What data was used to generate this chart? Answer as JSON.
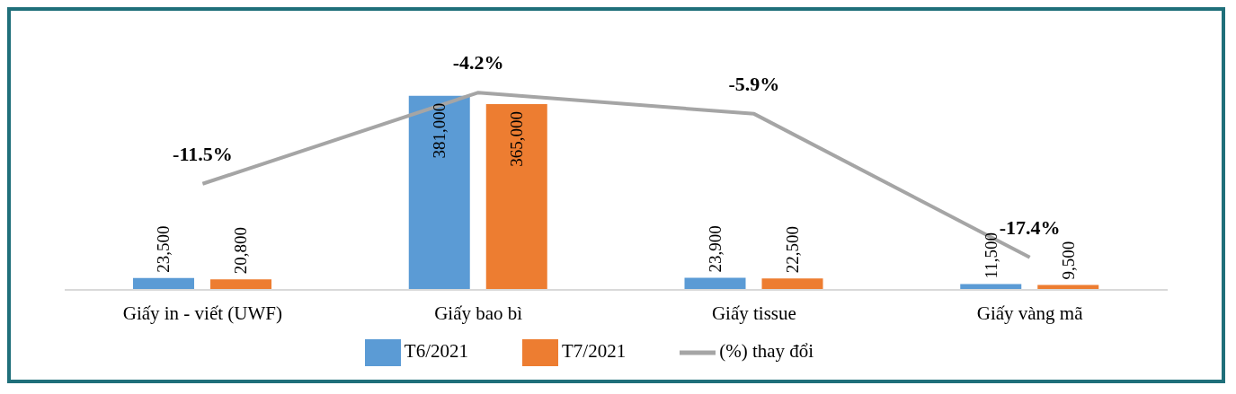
{
  "chart_data": {
    "type": "bar",
    "categories": [
      "Giấy in - viết (UWF)",
      "Giấy bao bì",
      "Giấy tissue",
      "Giấy vàng mã"
    ],
    "series": [
      {
        "name": "T6/2021",
        "color": "#5b9bd5",
        "values": [
          23500,
          381000,
          23900,
          11500
        ],
        "value_labels": [
          "23,500",
          "381,000",
          "23,900",
          "11,500"
        ]
      },
      {
        "name": "T7/2021",
        "color": "#ed7d31",
        "values": [
          20800,
          365000,
          22500,
          9500
        ],
        "value_labels": [
          "20,800",
          "365,000",
          "22,500",
          "9,500"
        ]
      },
      {
        "name": "(%) thay đổi",
        "type": "line",
        "axis": "y2",
        "color": "#a5a5a5",
        "values": [
          -11.5,
          -4.2,
          -5.9,
          -17.4
        ],
        "value_labels": [
          "-11.5%",
          "-4.2%",
          "-5.9%",
          "-17.4%"
        ]
      }
    ],
    "legend": "bottom",
    "tick_labels": "x",
    "marker": "none"
  }
}
